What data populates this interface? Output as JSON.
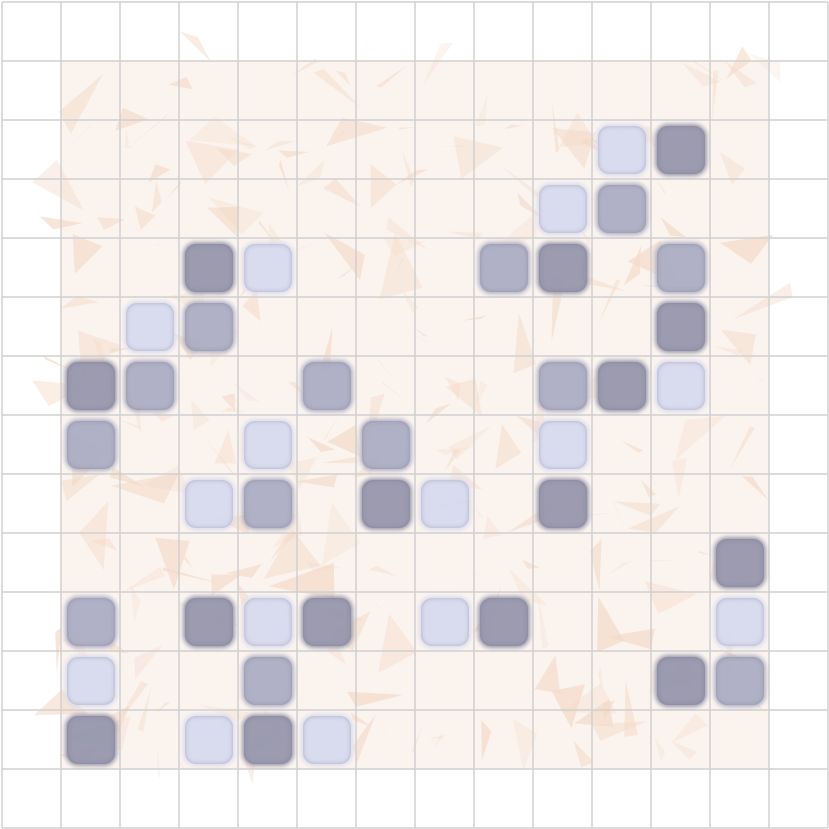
{
  "board": {
    "grid": {
      "cols": 14,
      "rows": 14,
      "line_color": "#d0d0d0"
    },
    "play_area": {
      "texture": "peach-mottled",
      "base_color": "#fbf3ee",
      "blotch_color": "#f3d9c6"
    },
    "shade_colors": {
      "dark": "#9797ad",
      "medium": "#adaec4",
      "light": "#d8dbef"
    },
    "tiles": [
      {
        "col": 10,
        "row": 2,
        "shade": "light"
      },
      {
        "col": 11,
        "row": 2,
        "shade": "dark"
      },
      {
        "col": 9,
        "row": 3,
        "shade": "light"
      },
      {
        "col": 10,
        "row": 3,
        "shade": "medium"
      },
      {
        "col": 3,
        "row": 4,
        "shade": "dark"
      },
      {
        "col": 4,
        "row": 4,
        "shade": "light"
      },
      {
        "col": 8,
        "row": 4,
        "shade": "medium"
      },
      {
        "col": 9,
        "row": 4,
        "shade": "dark"
      },
      {
        "col": 11,
        "row": 4,
        "shade": "medium"
      },
      {
        "col": 2,
        "row": 5,
        "shade": "light"
      },
      {
        "col": 3,
        "row": 5,
        "shade": "medium"
      },
      {
        "col": 11,
        "row": 5,
        "shade": "dark"
      },
      {
        "col": 1,
        "row": 6,
        "shade": "dark"
      },
      {
        "col": 2,
        "row": 6,
        "shade": "medium"
      },
      {
        "col": 5,
        "row": 6,
        "shade": "medium"
      },
      {
        "col": 9,
        "row": 6,
        "shade": "medium"
      },
      {
        "col": 10,
        "row": 6,
        "shade": "dark"
      },
      {
        "col": 11,
        "row": 6,
        "shade": "light"
      },
      {
        "col": 1,
        "row": 7,
        "shade": "medium"
      },
      {
        "col": 4,
        "row": 7,
        "shade": "light"
      },
      {
        "col": 6,
        "row": 7,
        "shade": "medium"
      },
      {
        "col": 9,
        "row": 7,
        "shade": "light"
      },
      {
        "col": 3,
        "row": 8,
        "shade": "light"
      },
      {
        "col": 4,
        "row": 8,
        "shade": "medium"
      },
      {
        "col": 6,
        "row": 8,
        "shade": "dark"
      },
      {
        "col": 7,
        "row": 8,
        "shade": "light"
      },
      {
        "col": 9,
        "row": 8,
        "shade": "dark"
      },
      {
        "col": 12,
        "row": 9,
        "shade": "dark"
      },
      {
        "col": 1,
        "row": 10,
        "shade": "medium"
      },
      {
        "col": 3,
        "row": 10,
        "shade": "dark"
      },
      {
        "col": 4,
        "row": 10,
        "shade": "light"
      },
      {
        "col": 5,
        "row": 10,
        "shade": "dark"
      },
      {
        "col": 7,
        "row": 10,
        "shade": "light"
      },
      {
        "col": 8,
        "row": 10,
        "shade": "dark"
      },
      {
        "col": 12,
        "row": 10,
        "shade": "light"
      },
      {
        "col": 1,
        "row": 11,
        "shade": "light"
      },
      {
        "col": 4,
        "row": 11,
        "shade": "medium"
      },
      {
        "col": 11,
        "row": 11,
        "shade": "dark"
      },
      {
        "col": 12,
        "row": 11,
        "shade": "medium"
      },
      {
        "col": 1,
        "row": 12,
        "shade": "dark"
      },
      {
        "col": 3,
        "row": 12,
        "shade": "light"
      },
      {
        "col": 4,
        "row": 12,
        "shade": "dark"
      },
      {
        "col": 5,
        "row": 12,
        "shade": "light"
      }
    ]
  }
}
